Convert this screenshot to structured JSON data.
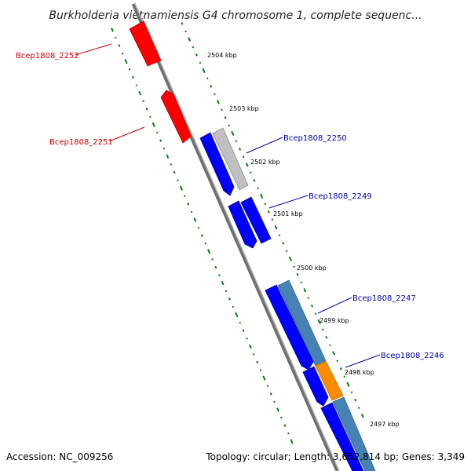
{
  "title": "Burkholderia vietnamiensis G4 chromosome 1, complete sequenc...",
  "colors": {
    "background": "#ffffff",
    "backbone": "#808080",
    "gc_skew_ticks": "#008000",
    "reverse_gene": "#ff0000",
    "forward_gene": "#0000ff",
    "other_gene": "#c0c0c0",
    "steelblue_gene": "#4682b4",
    "orange_gene": "#ff8c00",
    "reverse_label": "#cc0000",
    "forward_label": "#0000aa"
  },
  "kbp_labels": [
    "2504 kbp",
    "2503 kbp",
    "2502 kbp",
    "2501 kbp",
    "2500 kbp",
    "2499 kbp",
    "2498 kbp",
    "2497 kbp"
  ],
  "gene_labels": [
    {
      "text": "Bcep1808_2252",
      "strand": "reverse"
    },
    {
      "text": "Bcep1808_2251",
      "strand": "reverse"
    },
    {
      "text": "Bcep1808_2250",
      "strand": "forward"
    },
    {
      "text": "Bcep1808_2249",
      "strand": "forward"
    },
    {
      "text": "Bcep1808_2247",
      "strand": "forward"
    },
    {
      "text": "Bcep1808_2246",
      "strand": "forward"
    }
  ],
  "footer": {
    "accession": "Accession: NC_009256",
    "summary": "Topology: circular; Length: 3,652,814 bp; Genes: 3,349"
  }
}
